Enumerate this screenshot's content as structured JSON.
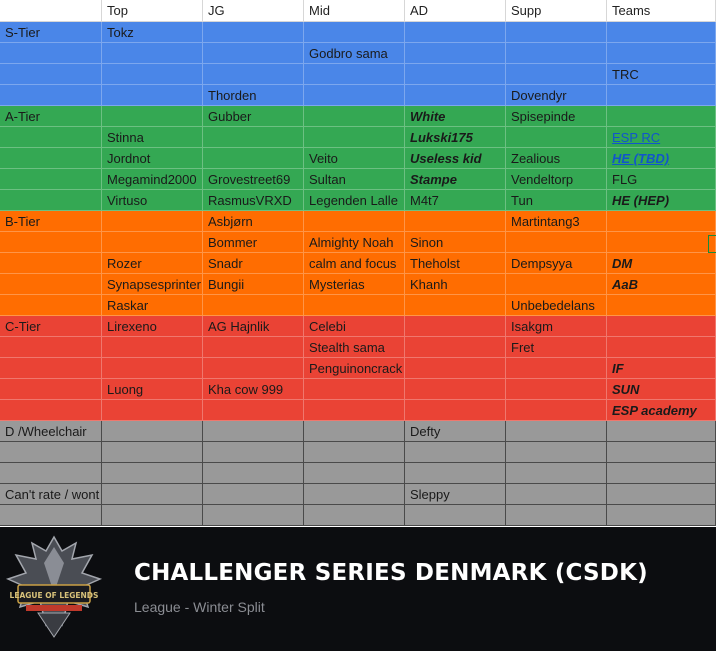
{
  "colors": {
    "s_tier": "#4a86e8",
    "a_tier": "#34a853",
    "b_tier": "#ff6d01",
    "c_tier": "#ea4335",
    "d_tier": "#999999",
    "header": "#ffffff",
    "banner": "#0c0d10",
    "link": "#1155cc"
  },
  "header": [
    "",
    "Top",
    "JG",
    "Mid",
    "AD",
    "Supp",
    "Teams"
  ],
  "rows": [
    {
      "tier": "s",
      "cells": [
        {
          "t": "S-Tier"
        },
        {
          "t": "Tokz"
        },
        {
          "t": ""
        },
        {
          "t": ""
        },
        {
          "t": ""
        },
        {
          "t": ""
        },
        {
          "t": ""
        }
      ]
    },
    {
      "tier": "s",
      "cells": [
        {
          "t": ""
        },
        {
          "t": ""
        },
        {
          "t": ""
        },
        {
          "t": "Godbro sama"
        },
        {
          "t": ""
        },
        {
          "t": ""
        },
        {
          "t": ""
        }
      ]
    },
    {
      "tier": "s",
      "cells": [
        {
          "t": ""
        },
        {
          "t": ""
        },
        {
          "t": ""
        },
        {
          "t": ""
        },
        {
          "t": ""
        },
        {
          "t": ""
        },
        {
          "t": "TRC"
        }
      ]
    },
    {
      "tier": "s",
      "cells": [
        {
          "t": ""
        },
        {
          "t": ""
        },
        {
          "t": "Thorden"
        },
        {
          "t": ""
        },
        {
          "t": ""
        },
        {
          "t": "Dovendyr"
        },
        {
          "t": ""
        }
      ]
    },
    {
      "tier": "a",
      "cells": [
        {
          "t": "A-Tier"
        },
        {
          "t": ""
        },
        {
          "t": "Gubber"
        },
        {
          "t": ""
        },
        {
          "t": "White",
          "bi": true
        },
        {
          "t": "Spisepinde"
        },
        {
          "t": ""
        }
      ]
    },
    {
      "tier": "a",
      "cells": [
        {
          "t": ""
        },
        {
          "t": "Stinna"
        },
        {
          "t": ""
        },
        {
          "t": ""
        },
        {
          "t": "Lukski175",
          "bi": true
        },
        {
          "t": ""
        },
        {
          "t": "ESP RC",
          "link": true
        }
      ]
    },
    {
      "tier": "a",
      "cells": [
        {
          "t": ""
        },
        {
          "t": "Jordnot"
        },
        {
          "t": ""
        },
        {
          "t": "Veito"
        },
        {
          "t": "Useless kid",
          "bi": true
        },
        {
          "t": "Zealious"
        },
        {
          "t": "HE (TBD)",
          "link": true,
          "bi": true
        }
      ]
    },
    {
      "tier": "a",
      "cells": [
        {
          "t": ""
        },
        {
          "t": "Megamind2000"
        },
        {
          "t": "Grovestreet69"
        },
        {
          "t": "Sultan"
        },
        {
          "t": "Stampe",
          "bi": true
        },
        {
          "t": "Vendeltorp"
        },
        {
          "t": "FLG"
        }
      ]
    },
    {
      "tier": "a",
      "cells": [
        {
          "t": ""
        },
        {
          "t": "Virtuso"
        },
        {
          "t": "RasmusVRXD"
        },
        {
          "t": "Legenden Lalle"
        },
        {
          "t": "M4t7"
        },
        {
          "t": "Tun"
        },
        {
          "t": "HE (HEP)",
          "bi": true
        }
      ]
    },
    {
      "tier": "b",
      "cells": [
        {
          "t": "B-Tier"
        },
        {
          "t": ""
        },
        {
          "t": "Asbjørn"
        },
        {
          "t": ""
        },
        {
          "t": ""
        },
        {
          "t": "Martintang3"
        },
        {
          "t": ""
        }
      ]
    },
    {
      "tier": "b",
      "cells": [
        {
          "t": ""
        },
        {
          "t": ""
        },
        {
          "t": "Bommer"
        },
        {
          "t": "Almighty Noah"
        },
        {
          "t": "Sinon"
        },
        {
          "t": ""
        },
        {
          "t": ""
        }
      ]
    },
    {
      "tier": "b",
      "cells": [
        {
          "t": ""
        },
        {
          "t": "Rozer"
        },
        {
          "t": "Snadr"
        },
        {
          "t": "calm and focus"
        },
        {
          "t": "Theholst"
        },
        {
          "t": "Dempsyya"
        },
        {
          "t": "DM",
          "bi": true
        }
      ]
    },
    {
      "tier": "b",
      "cells": [
        {
          "t": ""
        },
        {
          "t": "Synapsesprinter"
        },
        {
          "t": "Bungii"
        },
        {
          "t": "Mysterias"
        },
        {
          "t": "Khanh"
        },
        {
          "t": ""
        },
        {
          "t": "AaB",
          "bi": true
        }
      ]
    },
    {
      "tier": "b",
      "cells": [
        {
          "t": ""
        },
        {
          "t": "Raskar"
        },
        {
          "t": ""
        },
        {
          "t": ""
        },
        {
          "t": ""
        },
        {
          "t": "Unbebedelans"
        },
        {
          "t": ""
        }
      ]
    },
    {
      "tier": "c",
      "cells": [
        {
          "t": "C-Tier"
        },
        {
          "t": "Lirexeno"
        },
        {
          "t": "AG Hajnlik"
        },
        {
          "t": "Celebi"
        },
        {
          "t": ""
        },
        {
          "t": "Isakgm"
        },
        {
          "t": ""
        }
      ]
    },
    {
      "tier": "c",
      "cells": [
        {
          "t": ""
        },
        {
          "t": ""
        },
        {
          "t": ""
        },
        {
          "t": "Stealth sama"
        },
        {
          "t": ""
        },
        {
          "t": "Fret"
        },
        {
          "t": ""
        }
      ]
    },
    {
      "tier": "c",
      "cells": [
        {
          "t": ""
        },
        {
          "t": ""
        },
        {
          "t": ""
        },
        {
          "t": "Penguinoncrack"
        },
        {
          "t": ""
        },
        {
          "t": ""
        },
        {
          "t": "IF",
          "bi": true
        }
      ]
    },
    {
      "tier": "c",
      "cells": [
        {
          "t": ""
        },
        {
          "t": "Luong"
        },
        {
          "t": "Kha cow 999"
        },
        {
          "t": ""
        },
        {
          "t": ""
        },
        {
          "t": ""
        },
        {
          "t": "SUN",
          "bi": true
        }
      ]
    },
    {
      "tier": "c",
      "cells": [
        {
          "t": ""
        },
        {
          "t": ""
        },
        {
          "t": ""
        },
        {
          "t": ""
        },
        {
          "t": ""
        },
        {
          "t": ""
        },
        {
          "t": "ESP academy",
          "bi": true
        }
      ]
    },
    {
      "tier": "d",
      "cells": [
        {
          "t": "D /Wheelchair"
        },
        {
          "t": ""
        },
        {
          "t": ""
        },
        {
          "t": ""
        },
        {
          "t": "Defty"
        },
        {
          "t": ""
        },
        {
          "t": ""
        }
      ]
    },
    {
      "tier": "d",
      "cells": [
        {
          "t": ""
        },
        {
          "t": ""
        },
        {
          "t": ""
        },
        {
          "t": ""
        },
        {
          "t": ""
        },
        {
          "t": ""
        },
        {
          "t": ""
        }
      ]
    },
    {
      "tier": "d",
      "cells": [
        {
          "t": ""
        },
        {
          "t": ""
        },
        {
          "t": ""
        },
        {
          "t": ""
        },
        {
          "t": ""
        },
        {
          "t": ""
        },
        {
          "t": ""
        }
      ]
    },
    {
      "tier": "d",
      "cells": [
        {
          "t": "Can't rate / wont rate"
        },
        {
          "t": ""
        },
        {
          "t": ""
        },
        {
          "t": ""
        },
        {
          "t": "Sleppy"
        },
        {
          "t": ""
        },
        {
          "t": ""
        }
      ]
    },
    {
      "tier": "d",
      "cells": [
        {
          "t": ""
        },
        {
          "t": ""
        },
        {
          "t": ""
        },
        {
          "t": ""
        },
        {
          "t": ""
        },
        {
          "t": ""
        },
        {
          "t": ""
        }
      ]
    }
  ],
  "banner": {
    "logo_text": "LEAGUE OF LEGENDS",
    "title": "CHALLENGER SERIES DENMARK (CSDK)",
    "subtitle": "League - Winter Split"
  }
}
